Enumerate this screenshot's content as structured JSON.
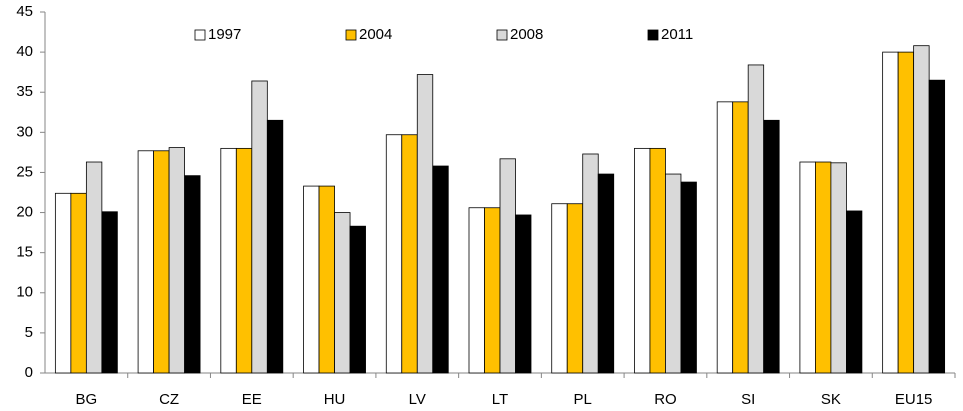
{
  "chart_data": {
    "type": "bar",
    "categories": [
      "BG",
      "CZ",
      "EE",
      "HU",
      "LV",
      "LT",
      "PL",
      "RO",
      "SI",
      "SK",
      "EU15"
    ],
    "series": [
      {
        "name": "1997",
        "color": "#ffffff",
        "values": [
          22.4,
          27.7,
          28.0,
          23.3,
          29.7,
          20.6,
          21.1,
          28.0,
          33.8,
          26.3,
          40.0
        ]
      },
      {
        "name": "2004",
        "color": "#ffc000",
        "values": [
          22.4,
          27.7,
          28.0,
          23.3,
          29.7,
          20.6,
          21.1,
          28.0,
          33.8,
          26.3,
          40.0
        ]
      },
      {
        "name": "2008",
        "color": "#d9d9d9",
        "values": [
          26.3,
          28.1,
          36.4,
          20.0,
          37.2,
          26.7,
          27.3,
          24.8,
          38.4,
          26.2,
          40.8
        ]
      },
      {
        "name": "2011",
        "color": "#000000",
        "values": [
          20.1,
          24.6,
          31.5,
          18.3,
          25.8,
          19.7,
          24.8,
          23.8,
          31.5,
          20.2,
          36.5
        ]
      }
    ],
    "ylim": [
      0,
      45
    ],
    "yticks": [
      0,
      5,
      10,
      15,
      20,
      25,
      30,
      35,
      40,
      45
    ],
    "grid": false,
    "legend": "top"
  }
}
